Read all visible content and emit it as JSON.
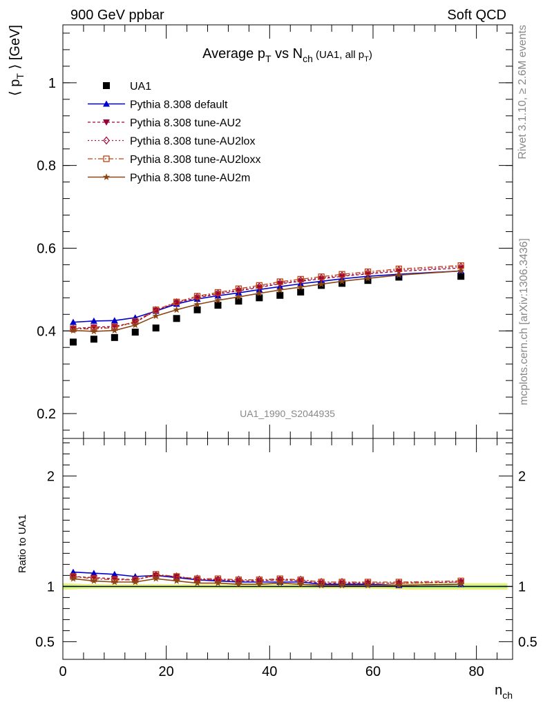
{
  "header": {
    "left": "900 GeV ppbar",
    "right": "Soft QCD"
  },
  "title": {
    "prefix": "Average p",
    "sub1": "T",
    "mid": " vs N",
    "sub2": "ch",
    "paren_prefix": " (UA1, all p",
    "paren_sub": "T",
    "paren_suffix": ")"
  },
  "ylabel_top": {
    "prefix": "⟨ p",
    "sub": "T",
    "suffix": " ⟩ [GeV]"
  },
  "ylabel_bottom": "Ratio to UA1",
  "xlabel": {
    "main": "n",
    "sub": "ch"
  },
  "side_labels": {
    "rivet": "Rivet 3.1.10, ≥ 2.6M events",
    "mcplots": "mcplots.cern.ch [arXiv:1306.3436]"
  },
  "analysis_id": "UA1_1990_S2044935",
  "colors": {
    "data": "#000000",
    "default": "#0000cc",
    "AU2": "#99003a",
    "AU2lox": "#a01040",
    "AU2loxx": "#c04010",
    "AU2m": "#8b4513",
    "band_yellow": "#f0f080",
    "band_green": "#90ee90"
  },
  "chart_data": [
    {
      "type": "scatter",
      "panel": "main",
      "xlim": [
        0,
        87
      ],
      "ylim": [
        0.14,
        1.14
      ],
      "yticks": [
        0.2,
        0.4,
        0.6,
        0.8,
        1.0
      ],
      "ytick_labels": [
        "0.2",
        "0.4",
        "0.6",
        "0.8",
        "1"
      ],
      "x": [
        2,
        6,
        10,
        14,
        18,
        22,
        26,
        30,
        34,
        38,
        42,
        46,
        50,
        54,
        59,
        65,
        77
      ],
      "series": [
        {
          "name": "UA1",
          "key": "data",
          "marker": "square",
          "values": [
            0.373,
            0.38,
            0.384,
            0.397,
            0.407,
            0.43,
            0.451,
            0.462,
            0.472,
            0.48,
            0.486,
            0.494,
            0.51,
            0.515,
            0.522,
            0.53,
            0.532
          ]
        },
        {
          "name": "Pythia 8.308 default",
          "key": "default",
          "marker": "triangle-up",
          "values": [
            0.421,
            0.424,
            0.425,
            0.432,
            0.448,
            0.465,
            0.477,
            0.485,
            0.492,
            0.5,
            0.507,
            0.514,
            0.52,
            0.526,
            0.532,
            0.537,
            0.545
          ]
        },
        {
          "name": "Pythia 8.308 tune-AU2",
          "key": "AU2",
          "marker": "triangle-down",
          "values": [
            0.406,
            0.409,
            0.411,
            0.421,
            0.449,
            0.468,
            0.48,
            0.489,
            0.497,
            0.505,
            0.514,
            0.52,
            0.526,
            0.532,
            0.538,
            0.544,
            0.552
          ]
        },
        {
          "name": "Pythia 8.308 tune-AU2lox",
          "key": "AU2lox",
          "marker": "diamond",
          "values": [
            0.405,
            0.407,
            0.409,
            0.42,
            0.45,
            0.469,
            0.482,
            0.491,
            0.499,
            0.507,
            0.516,
            0.522,
            0.528,
            0.534,
            0.54,
            0.547,
            0.555
          ]
        },
        {
          "name": "Pythia 8.308 tune-AU2loxx",
          "key": "AU2loxx",
          "marker": "square-open",
          "values": [
            0.405,
            0.405,
            0.408,
            0.423,
            0.451,
            0.47,
            0.484,
            0.493,
            0.502,
            0.51,
            0.519,
            0.525,
            0.531,
            0.537,
            0.543,
            0.55,
            0.558
          ]
        },
        {
          "name": "Pythia 8.308 tune-AU2m",
          "key": "AU2m",
          "marker": "star",
          "values": [
            0.401,
            0.399,
            0.401,
            0.414,
            0.436,
            0.451,
            0.464,
            0.474,
            0.482,
            0.491,
            0.499,
            0.506,
            0.513,
            0.52,
            0.527,
            0.535,
            0.545
          ]
        }
      ],
      "legend": {
        "placement": "top-left"
      }
    },
    {
      "type": "line",
      "panel": "ratio",
      "xlim": [
        0,
        87
      ],
      "ylim": [
        0.34,
        2.34
      ],
      "yticks": [
        0.5,
        1,
        2
      ],
      "ytick_labels": [
        "0.5",
        "1",
        "2"
      ],
      "xticks": [
        0,
        20,
        40,
        60,
        80
      ],
      "xtick_labels": [
        "0",
        "20",
        "40",
        "60",
        "80"
      ],
      "reference": 1.0,
      "uncertainty_band": {
        "x": [
          0,
          4,
          8,
          12,
          16,
          20,
          24,
          28,
          32,
          36,
          40,
          44,
          48,
          52,
          56,
          62,
          68,
          86
        ],
        "half_width": [
          0.02,
          0.015,
          0.013,
          0.013,
          0.013,
          0.013,
          0.013,
          0.013,
          0.013,
          0.013,
          0.013,
          0.013,
          0.013,
          0.013,
          0.013,
          0.015,
          0.02,
          0.02
        ]
      },
      "x": [
        2,
        6,
        10,
        14,
        18,
        22,
        26,
        30,
        34,
        38,
        42,
        46,
        50,
        54,
        59,
        65,
        77
      ],
      "series": [
        {
          "key": "default",
          "values": [
            1.13,
            1.12,
            1.11,
            1.09,
            1.1,
            1.08,
            1.06,
            1.05,
            1.04,
            1.04,
            1.04,
            1.04,
            1.02,
            1.02,
            1.02,
            1.01,
            1.02
          ]
        },
        {
          "key": "AU2",
          "values": [
            1.09,
            1.08,
            1.07,
            1.06,
            1.1,
            1.09,
            1.06,
            1.06,
            1.05,
            1.05,
            1.06,
            1.05,
            1.03,
            1.03,
            1.03,
            1.03,
            1.04
          ]
        },
        {
          "key": "AU2lox",
          "values": [
            1.09,
            1.07,
            1.06,
            1.06,
            1.1,
            1.09,
            1.07,
            1.06,
            1.06,
            1.06,
            1.06,
            1.06,
            1.04,
            1.04,
            1.03,
            1.03,
            1.04
          ]
        },
        {
          "key": "AU2loxx",
          "values": [
            1.09,
            1.07,
            1.06,
            1.06,
            1.11,
            1.09,
            1.07,
            1.07,
            1.06,
            1.06,
            1.07,
            1.06,
            1.04,
            1.04,
            1.04,
            1.04,
            1.05
          ]
        },
        {
          "key": "AU2m",
          "values": [
            1.07,
            1.05,
            1.04,
            1.04,
            1.07,
            1.05,
            1.03,
            1.03,
            1.02,
            1.02,
            1.03,
            1.02,
            1.01,
            1.01,
            1.01,
            1.01,
            1.02
          ]
        }
      ]
    }
  ]
}
